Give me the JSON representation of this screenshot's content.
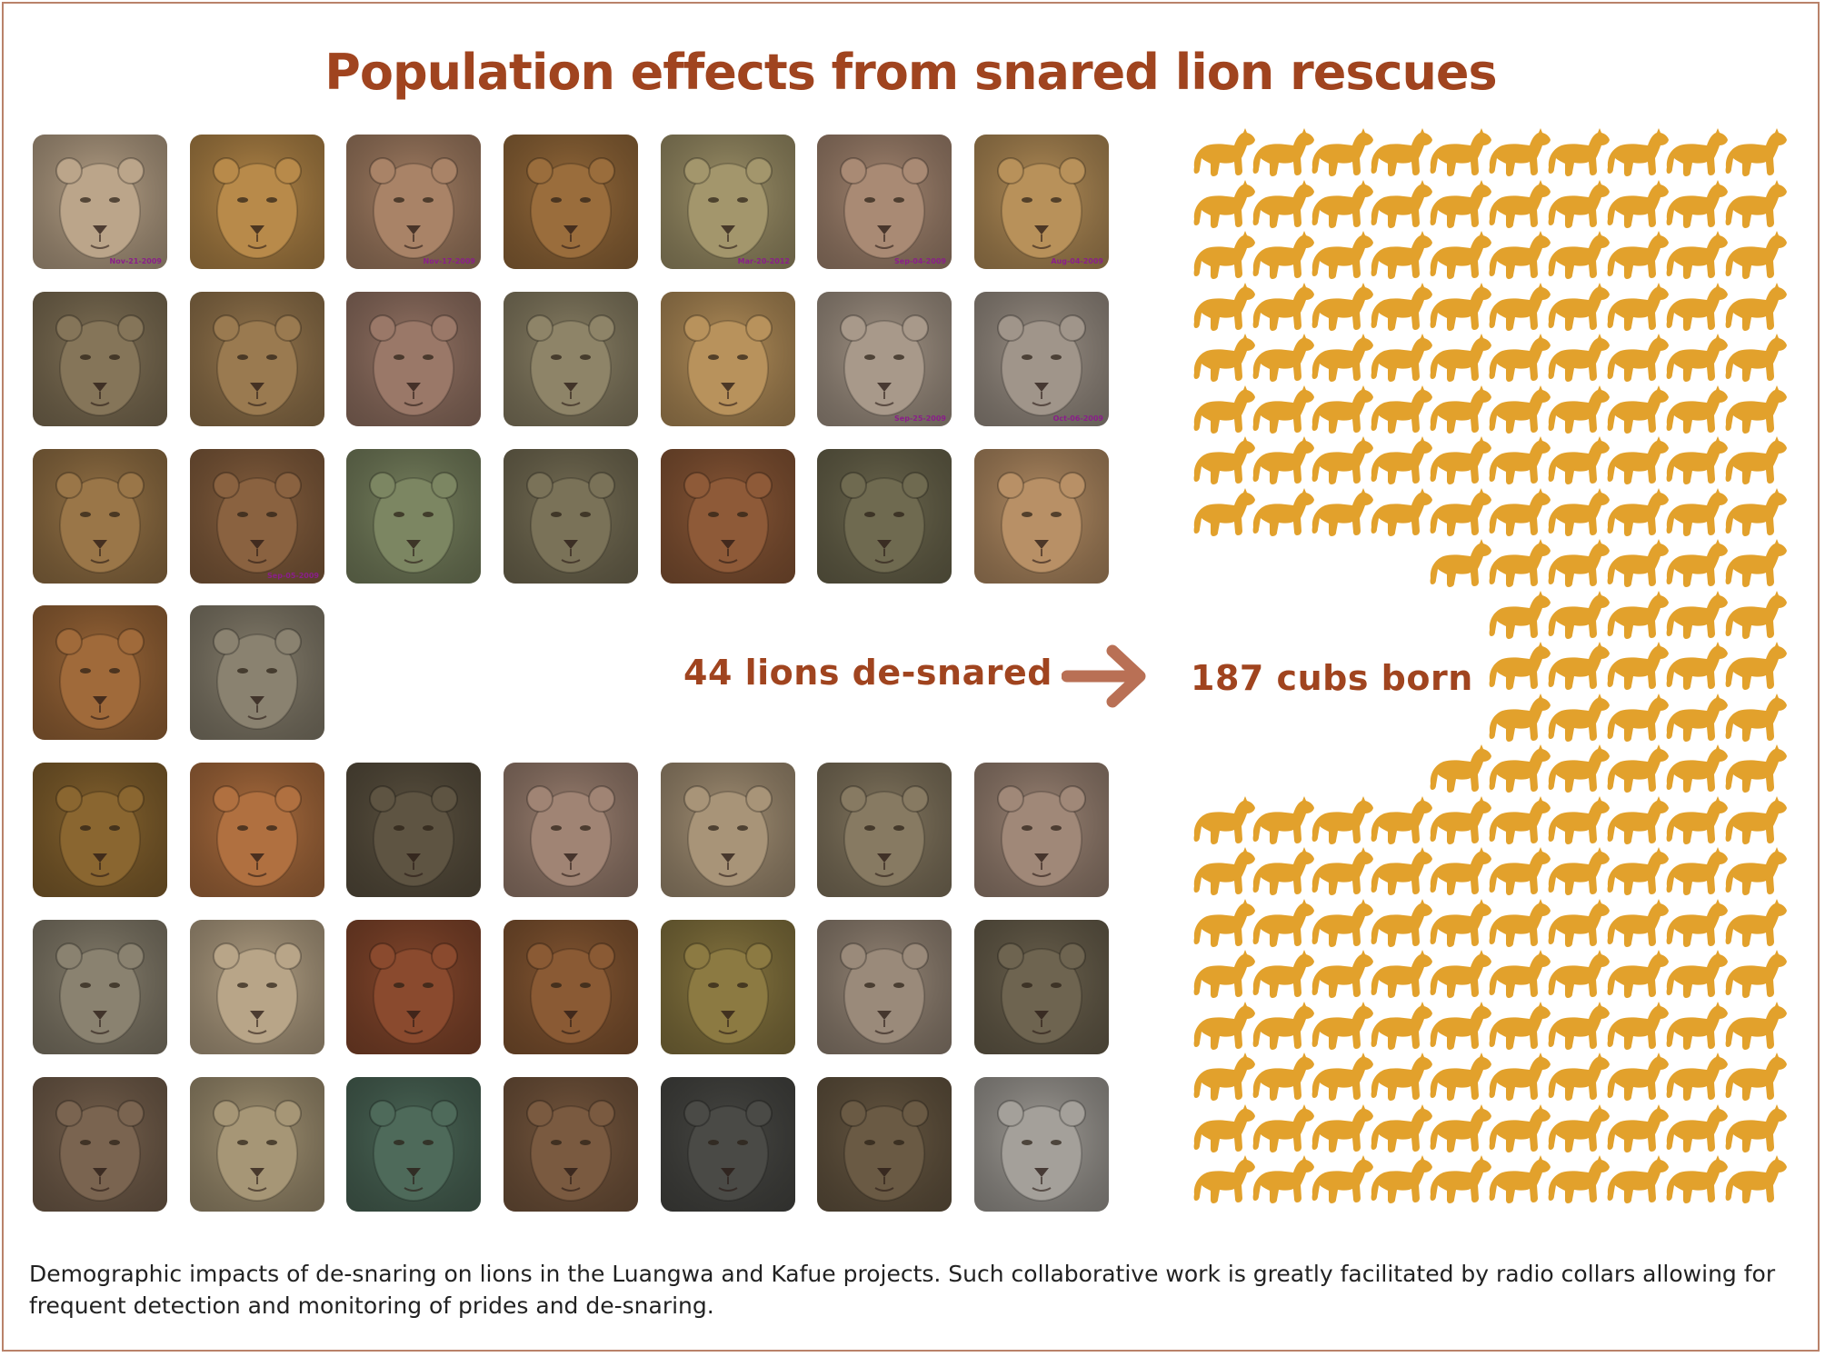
{
  "title": "Population effects from snared lion rescues",
  "center": {
    "snared_label": "44 lions de-snared",
    "cubs_label": "187 cubs born",
    "arrow_icon": "arrow-right-icon",
    "text_color": "#a0441f",
    "arrow_color": "#b97055"
  },
  "cub_color": "#e2a12c",
  "caption": "Demographic impacts of de-snaring on lions in the Luangwa and Kafue projects. Such collaborative work is greatly facilitated by radio collars allowing for frequent detection and monitoring of prides and de-snaring.",
  "photo_grid": {
    "count": 44,
    "photos": [
      {
        "tone": "#bba58a",
        "stamp": "Nov-21-2009"
      },
      {
        "tone": "#b88a4a",
        "stamp": ""
      },
      {
        "tone": "#a98367",
        "stamp": "Nov-17-2009"
      },
      {
        "tone": "#9a6d3c",
        "stamp": ""
      },
      {
        "tone": "#a3966c",
        "stamp": "Mar-20-2012"
      },
      {
        "tone": "#a98a74",
        "stamp": "Sep-04-2009"
      },
      {
        "tone": "#b8915a",
        "stamp": "Aug-04-2009"
      },
      {
        "tone": "#857559",
        "stamp": ""
      },
      {
        "tone": "#9a7a50",
        "stamp": ""
      },
      {
        "tone": "#9a7868",
        "stamp": ""
      },
      {
        "tone": "#8e8468",
        "stamp": ""
      },
      {
        "tone": "#b8925c",
        "stamp": ""
      },
      {
        "tone": "#a8998a",
        "stamp": "Sep-25-2009"
      },
      {
        "tone": "#a0958a",
        "stamp": "Oct-06-2009"
      },
      {
        "tone": "#9a7648",
        "stamp": ""
      },
      {
        "tone": "#8a6240",
        "stamp": "Sep-05-2009"
      },
      {
        "tone": "#7c8662",
        "stamp": ""
      },
      {
        "tone": "#7a7258",
        "stamp": ""
      },
      {
        "tone": "#8e5a38",
        "stamp": ""
      },
      {
        "tone": "#6f6a50",
        "stamp": ""
      },
      {
        "tone": "#b89066",
        "stamp": ""
      },
      {
        "tone": "#a06a3a",
        "stamp": ""
      },
      {
        "tone": "#8a8270",
        "stamp": ""
      },
      {
        "tone": "#8a6630",
        "stamp": ""
      },
      {
        "tone": "#b07040",
        "stamp": ""
      },
      {
        "tone": "#5e5442",
        "stamp": ""
      },
      {
        "tone": "#a08474",
        "stamp": ""
      },
      {
        "tone": "#a89478",
        "stamp": ""
      },
      {
        "tone": "#877a62",
        "stamp": ""
      },
      {
        "tone": "#a08878",
        "stamp": ""
      },
      {
        "tone": "#8a8270",
        "stamp": ""
      },
      {
        "tone": "#b8a588",
        "stamp": ""
      },
      {
        "tone": "#8a4a2e",
        "stamp": ""
      },
      {
        "tone": "#8a5a34",
        "stamp": ""
      },
      {
        "tone": "#8c7a42",
        "stamp": ""
      },
      {
        "tone": "#9a8a7a",
        "stamp": ""
      },
      {
        "tone": "#6e6450",
        "stamp": ""
      },
      {
        "tone": "#7a6450",
        "stamp": ""
      },
      {
        "tone": "#a69676",
        "stamp": ""
      },
      {
        "tone": "#4e6a5a",
        "stamp": ""
      },
      {
        "tone": "#7a5a40",
        "stamp": ""
      },
      {
        "tone": "#4a4a46",
        "stamp": ""
      },
      {
        "tone": "#6a5a44",
        "stamp": ""
      },
      {
        "tone": "#a4a09a",
        "stamp": ""
      }
    ]
  },
  "cubs": {
    "count": 187,
    "rows": [
      10,
      10,
      10,
      10,
      10,
      10,
      10,
      10,
      6,
      5,
      5,
      5,
      6,
      10,
      10,
      10,
      10,
      10,
      10,
      10,
      10
    ]
  }
}
